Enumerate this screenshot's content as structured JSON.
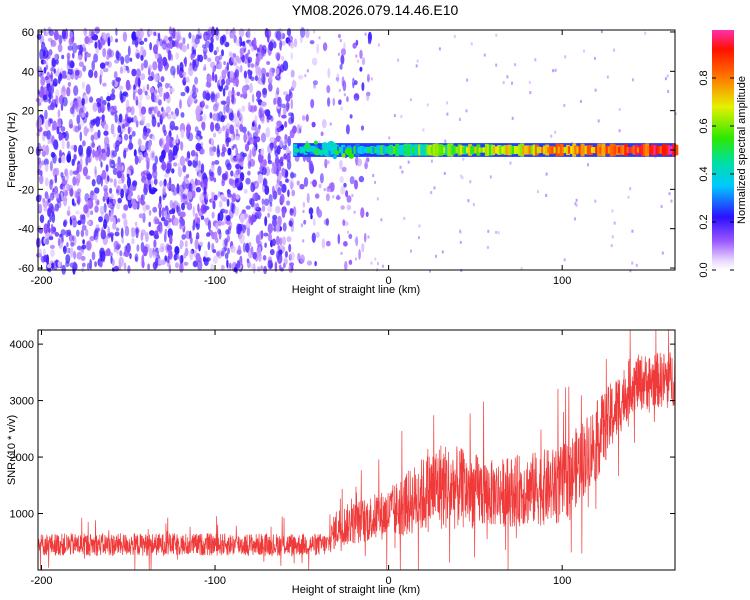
{
  "title": "YM08.2026.079.14.46.E10",
  "colors": {
    "spectrogram_noise": "#7a3cf0",
    "snr_line": "#f03a3a",
    "axis": "#000000"
  },
  "chart_data": [
    {
      "type": "heatmap",
      "name": "spectrogram",
      "xlabel": "Height of straight line (km)",
      "ylabel": "Frequency (Hz)",
      "xlim": [
        -202,
        165
      ],
      "ylim": [
        -61,
        61
      ],
      "xticks": [
        -200,
        -100,
        0,
        100
      ],
      "yticks": [
        -60,
        -40,
        -20,
        0,
        20,
        40,
        60
      ],
      "colorbar": {
        "label": "Normalized spectral amplitude",
        "range": [
          0.0,
          1.0
        ],
        "ticks": [
          "0.0",
          "0.2",
          "0.4",
          "0.6",
          "0.8"
        ],
        "colormap": "rainbow"
      },
      "features": {
        "broadband_noise_x_range": [
          -202,
          -35
        ],
        "noise_amplitude": 0.15,
        "signal_onset_km": -55,
        "signal_frequency_hz": 0,
        "signal_peak_amplitude": 1.0
      }
    },
    {
      "type": "line",
      "name": "snr",
      "xlabel": "Height of straight line (km)",
      "ylabel": "SNR (10 * v/v)",
      "xlim": [
        -202,
        165
      ],
      "ylim": [
        0,
        4250
      ],
      "xticks": [
        -200,
        -100,
        0,
        100
      ],
      "yticks": [
        1000,
        2000,
        3000,
        4000
      ],
      "segments": [
        {
          "x": -202,
          "mean": 450,
          "spread": 200
        },
        {
          "x": -35,
          "mean": 450,
          "spread": 200
        },
        {
          "x": -30,
          "mean": 750,
          "spread": 350
        },
        {
          "x": 0,
          "mean": 1000,
          "spread": 450
        },
        {
          "x": 30,
          "mean": 1500,
          "spread": 800
        },
        {
          "x": 60,
          "mean": 1350,
          "spread": 600
        },
        {
          "x": 100,
          "mean": 1500,
          "spread": 700
        },
        {
          "x": 120,
          "mean": 2300,
          "spread": 700
        },
        {
          "x": 140,
          "mean": 3300,
          "spread": 500
        },
        {
          "x": 165,
          "mean": 3400,
          "spread": 500
        }
      ]
    }
  ]
}
